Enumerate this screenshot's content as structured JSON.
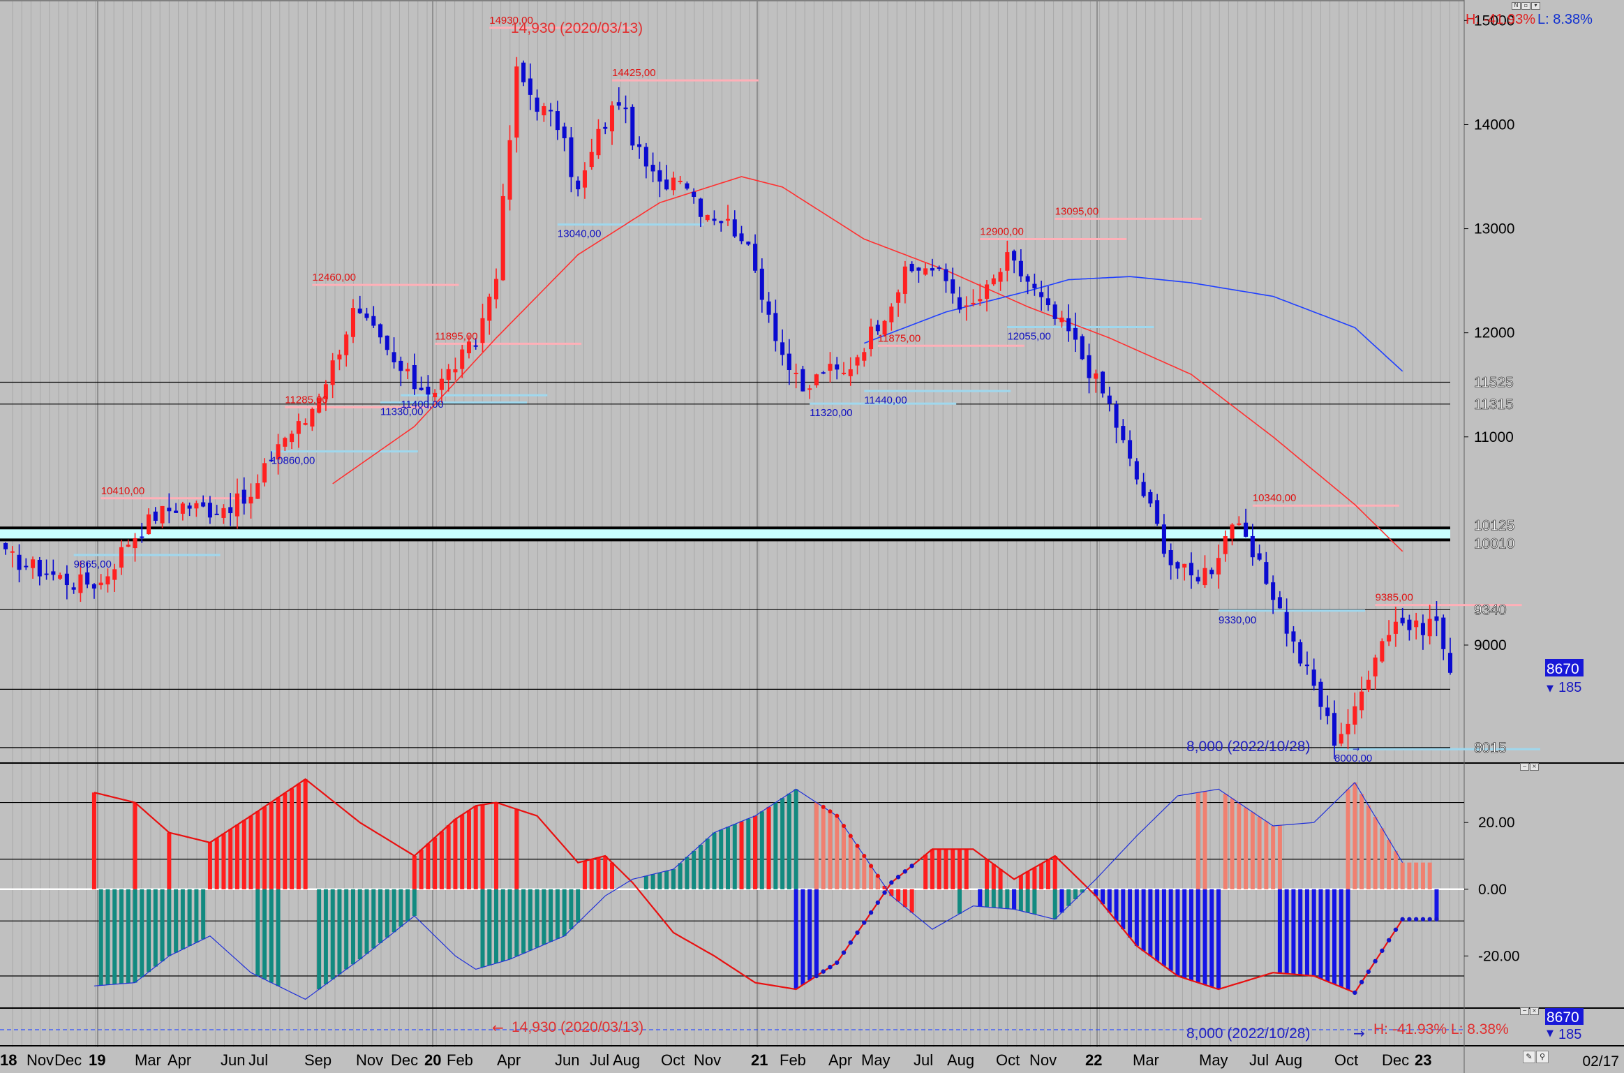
{
  "price_panel": {
    "high_low_ratio": {
      "high": "H: -41.93%",
      "low": "L: 8.38%"
    },
    "high_label": "14,930 (2020/03/13)",
    "low_label": "8,000 (2022/10/28)",
    "current_price": "8670",
    "change": "185",
    "colors": {
      "up": "#ff2020",
      "down": "#0a0ad0",
      "ma_red": "#ff3030",
      "ma_blue": "#2040ff",
      "high_line": "#ffb0b8",
      "low_line": "#9fd8ee",
      "band": "#c8ffff"
    }
  },
  "bottom_bar": {
    "high_label": "14,930 (2020/03/13)",
    "low_label": "8,000 (2022/10/28)",
    "ratio": "H: -41.93%  L: 8.38%",
    "current_price": "8670",
    "change": "185",
    "last_date": "02/17"
  },
  "chart_data": [
    {
      "type": "candlestick",
      "title": "",
      "yaxis_ticks": [
        "15000",
        "14000",
        "13000",
        "12000",
        "11000",
        "9000"
      ],
      "ylim": [
        7880,
        15170
      ],
      "xaxis_labels": [
        "18",
        "Nov",
        "Dec",
        "19",
        "Mar",
        "Apr",
        "Jun",
        "Jul",
        "Sep",
        "Nov",
        "Dec",
        "20",
        "Feb",
        "Apr",
        "Jun",
        "Jul",
        "Aug",
        "Oct",
        "Nov",
        "21",
        "Feb",
        "Apr",
        "May",
        "Jul",
        "Aug",
        "Oct",
        "Nov",
        "22",
        "Mar",
        "May",
        "Jul",
        "Aug",
        "Oct",
        "Dec",
        "23"
      ],
      "horizontal_levels": [
        {
          "value": 11525,
          "label": "11525"
        },
        {
          "value": 11315,
          "label": "11315"
        },
        {
          "value": 10125,
          "label": "10125"
        },
        {
          "value": 10010,
          "label": "10010"
        },
        {
          "value": 9340,
          "label": "9340"
        },
        {
          "value": 8575,
          "label": ""
        },
        {
          "value": 8015,
          "label": "8015"
        }
      ],
      "peak_annotations": [
        {
          "label": "10410,00",
          "value": 10410,
          "kind": "high"
        },
        {
          "label": "9865,00",
          "value": 9865,
          "kind": "low"
        },
        {
          "label": "11285,00",
          "value": 11285,
          "kind": "high"
        },
        {
          "label": "10860,00",
          "value": 10860,
          "kind": "low"
        },
        {
          "label": "12460,00",
          "value": 12460,
          "kind": "high"
        },
        {
          "label": "11330,00",
          "value": 11330,
          "kind": "low"
        },
        {
          "label": "11895,00",
          "value": 11895,
          "kind": "high"
        },
        {
          "label": "11400,00",
          "value": 11400,
          "kind": "low"
        },
        {
          "label": "14930,00",
          "value": 14930,
          "kind": "high"
        },
        {
          "label": "13040,00",
          "value": 13040,
          "kind": "low"
        },
        {
          "label": "14425,00",
          "value": 14425,
          "kind": "high"
        },
        {
          "label": "11320,00",
          "value": 11320,
          "kind": "low"
        },
        {
          "label": "11875,00",
          "value": 11875,
          "kind": "high"
        },
        {
          "label": "11440,00",
          "value": 11440,
          "kind": "low"
        },
        {
          "label": "12900,00",
          "value": 12900,
          "kind": "high"
        },
        {
          "label": "12055,00",
          "value": 12055,
          "kind": "low"
        },
        {
          "label": "13095,00",
          "value": 13095,
          "kind": "high"
        },
        {
          "label": "10340,00",
          "value": 10340,
          "kind": "high"
        },
        {
          "label": "9330,00",
          "value": 9330,
          "kind": "low"
        },
        {
          "label": "9385,00",
          "value": 9385,
          "kind": "high"
        },
        {
          "label": "8000,00",
          "value": 8000,
          "kind": "low"
        }
      ],
      "close_path": [
        [
          0,
          9850
        ],
        [
          6,
          9700
        ],
        [
          10,
          9600
        ],
        [
          14,
          9600
        ],
        [
          18,
          10000
        ],
        [
          22,
          10250
        ],
        [
          26,
          10350
        ],
        [
          30,
          10300
        ],
        [
          36,
          10400
        ],
        [
          40,
          10950
        ],
        [
          44,
          11150
        ],
        [
          48,
          11700
        ],
        [
          51,
          12200
        ],
        [
          54,
          12000
        ],
        [
          57,
          11700
        ],
        [
          60,
          11500
        ],
        [
          63,
          11450
        ],
        [
          66,
          11700
        ],
        [
          69,
          11900
        ],
        [
          72,
          12600
        ],
        [
          75,
          14500
        ],
        [
          78,
          14200
        ],
        [
          81,
          14000
        ],
        [
          84,
          13350
        ],
        [
          87,
          13900
        ],
        [
          90,
          14250
        ],
        [
          93,
          13700
        ],
        [
          96,
          13400
        ],
        [
          99,
          13550
        ],
        [
          102,
          13200
        ],
        [
          105,
          13100
        ],
        [
          108,
          12950
        ],
        [
          111,
          12400
        ],
        [
          114,
          11800
        ],
        [
          117,
          11400
        ],
        [
          120,
          11650
        ],
        [
          123,
          11600
        ],
        [
          126,
          11900
        ],
        [
          129,
          12200
        ],
        [
          132,
          12550
        ],
        [
          135,
          12650
        ],
        [
          138,
          12500
        ],
        [
          141,
          12200
        ],
        [
          144,
          12400
        ],
        [
          147,
          12700
        ],
        [
          150,
          12500
        ],
        [
          153,
          12200
        ],
        [
          156,
          12000
        ],
        [
          159,
          11650
        ],
        [
          162,
          11300
        ],
        [
          165,
          10750
        ],
        [
          168,
          10300
        ],
        [
          171,
          9800
        ],
        [
          174,
          9650
        ],
        [
          177,
          9750
        ],
        [
          180,
          10200
        ],
        [
          183,
          9850
        ],
        [
          186,
          9500
        ],
        [
          189,
          9000
        ],
        [
          192,
          8600
        ],
        [
          195,
          8100
        ],
        [
          198,
          8350
        ],
        [
          201,
          8950
        ],
        [
          204,
          9250
        ],
        [
          207,
          9150
        ],
        [
          210,
          9250
        ],
        [
          212,
          8670
        ]
      ],
      "moving_averages": [
        {
          "name": "",
          "color": "#ff3030",
          "points": [
            [
              48,
              10550
            ],
            [
              60,
              11100
            ],
            [
              72,
              11950
            ],
            [
              84,
              12750
            ],
            [
              96,
              13250
            ],
            [
              108,
              13500
            ],
            [
              114,
              13400
            ],
            [
              126,
              12900
            ],
            [
              138,
              12600
            ],
            [
              150,
              12250
            ],
            [
              162,
              11950
            ],
            [
              174,
              11600
            ],
            [
              186,
              11000
            ],
            [
              198,
              10350
            ],
            [
              205,
              9900
            ]
          ]
        },
        {
          "name": "",
          "color": "#2040ff",
          "points": [
            [
              126,
              11900
            ],
            [
              138,
              12200
            ],
            [
              150,
              12400
            ],
            [
              156,
              12510
            ],
            [
              165,
              12540
            ],
            [
              174,
              12480
            ],
            [
              186,
              12350
            ],
            [
              198,
              12050
            ],
            [
              205,
              11630
            ]
          ]
        }
      ]
    },
    {
      "type": "histogram",
      "title": "",
      "yaxis_ticks": [
        "20.00",
        "0.00",
        "-20.00"
      ],
      "ylim": [
        -35,
        37
      ],
      "reference_levels": [
        26,
        9,
        -9.5,
        -26
      ],
      "upper_line": [
        [
          13,
          29
        ],
        [
          19,
          26
        ],
        [
          24,
          17
        ],
        [
          30,
          14
        ],
        [
          36,
          22
        ],
        [
          44,
          33
        ],
        [
          52,
          20
        ],
        [
          60,
          10
        ],
        [
          66,
          21
        ],
        [
          69,
          25
        ],
        [
          72,
          26
        ],
        [
          78,
          22
        ],
        [
          84,
          8
        ],
        [
          88,
          10
        ],
        [
          92,
          2
        ],
        [
          98,
          -13
        ],
        [
          104,
          -20
        ],
        [
          110,
          -28
        ],
        [
          116,
          -30
        ],
        [
          122,
          -22
        ],
        [
          130,
          2
        ],
        [
          136,
          12
        ],
        [
          142,
          12
        ],
        [
          148,
          3
        ],
        [
          154,
          10
        ],
        [
          160,
          -2
        ],
        [
          166,
          -17
        ],
        [
          172,
          -26
        ],
        [
          178,
          -30
        ],
        [
          186,
          -25
        ],
        [
          192,
          -26
        ],
        [
          198,
          -31
        ],
        [
          205,
          -9
        ]
      ],
      "lower_line": [
        [
          13,
          -29
        ],
        [
          19,
          -28
        ],
        [
          24,
          -20
        ],
        [
          30,
          -14
        ],
        [
          36,
          -25
        ],
        [
          44,
          -33
        ],
        [
          52,
          -21
        ],
        [
          60,
          -8
        ],
        [
          66,
          -20
        ],
        [
          69,
          -24
        ],
        [
          74,
          -21
        ],
        [
          82,
          -14
        ],
        [
          88,
          -2
        ],
        [
          92,
          3
        ],
        [
          98,
          6
        ],
        [
          104,
          17
        ],
        [
          110,
          22
        ],
        [
          116,
          30
        ],
        [
          122,
          22
        ],
        [
          130,
          -2
        ],
        [
          136,
          -12
        ],
        [
          142,
          -5
        ],
        [
          148,
          -6
        ],
        [
          154,
          -9
        ],
        [
          160,
          3
        ],
        [
          166,
          16
        ],
        [
          172,
          28
        ],
        [
          178,
          30
        ],
        [
          186,
          19
        ],
        [
          192,
          20
        ],
        [
          198,
          32
        ],
        [
          205,
          8
        ]
      ],
      "bars": [
        {
          "from": 13,
          "to": 13,
          "color": "#ff1e1e",
          "line": "upper"
        },
        {
          "from": 19,
          "to": 19,
          "color": "#ff1e1e",
          "line": "upper"
        },
        {
          "from": 24,
          "to": 24,
          "color": "#ff1e1e",
          "line": "upper"
        },
        {
          "from": 30,
          "to": 44,
          "color": "#ff1e1e",
          "line": "upper"
        },
        {
          "from": 60,
          "to": 70,
          "color": "#ff1e1e",
          "line": "upper"
        },
        {
          "from": 72,
          "to": 72,
          "color": "#ff1e1e",
          "line": "upper"
        },
        {
          "from": 75,
          "to": 75,
          "color": "#ff1e1e",
          "line": "upper"
        },
        {
          "from": 85,
          "to": 89,
          "color": "#ff1e1e",
          "line": "upper"
        },
        {
          "from": 135,
          "to": 141,
          "color": "#ff1e1e",
          "line": "upper"
        },
        {
          "from": 144,
          "to": 146,
          "color": "#ff1e1e",
          "line": "upper"
        },
        {
          "from": 149,
          "to": 154,
          "color": "#ff1e1e",
          "line": "upper"
        },
        {
          "from": 14,
          "to": 29,
          "color": "#128a80",
          "line": "lower"
        },
        {
          "from": 37,
          "to": 40,
          "color": "#128a80",
          "line": "lower"
        },
        {
          "from": 46,
          "to": 60,
          "color": "#128a80",
          "line": "lower"
        },
        {
          "from": 70,
          "to": 84,
          "color": "#128a80",
          "line": "lower"
        },
        {
          "from": 94,
          "to": 116,
          "color": "#128a80",
          "line": "lower"
        },
        {
          "from": 140,
          "to": 140,
          "color": "#128a80",
          "line": "lower"
        },
        {
          "from": 143,
          "to": 151,
          "color": "#128a80",
          "line": "lower"
        },
        {
          "from": 154,
          "to": 158,
          "color": "#128a80",
          "line": "lower"
        },
        {
          "from": 116,
          "to": 119,
          "color": "#1414e6",
          "line": "upper"
        },
        {
          "from": 160,
          "to": 178,
          "color": "#1414e6",
          "line": "upper"
        },
        {
          "from": 187,
          "to": 197,
          "color": "#1414e6",
          "line": "upper"
        },
        {
          "from": 210,
          "to": 210,
          "color": "#1414e6",
          "line": "upper"
        },
        {
          "from": 143,
          "to": 143,
          "color": "#1414e6",
          "line": "lower"
        },
        {
          "from": 148,
          "to": 148,
          "color": "#1414e6",
          "line": "lower"
        },
        {
          "from": 155,
          "to": 155,
          "color": "#1414e6",
          "line": "lower"
        },
        {
          "from": 108,
          "to": 108,
          "color": "#ff1e1e",
          "line": "lower"
        },
        {
          "from": 110,
          "to": 110,
          "color": "#ff1e1e",
          "line": "lower"
        },
        {
          "from": 112,
          "to": 112,
          "color": "#ff1e1e",
          "line": "lower"
        },
        {
          "from": 128,
          "to": 133,
          "color": "#ff1e1e",
          "line": "lower"
        },
        {
          "from": 119,
          "to": 128,
          "color": "#f08070",
          "line": "lower"
        },
        {
          "from": 175,
          "to": 176,
          "color": "#f08070",
          "line": "lower"
        },
        {
          "from": 179,
          "to": 187,
          "color": "#f08070",
          "line": "lower"
        },
        {
          "from": 197,
          "to": 209,
          "color": "#f08070",
          "line": "lower"
        }
      ]
    }
  ]
}
